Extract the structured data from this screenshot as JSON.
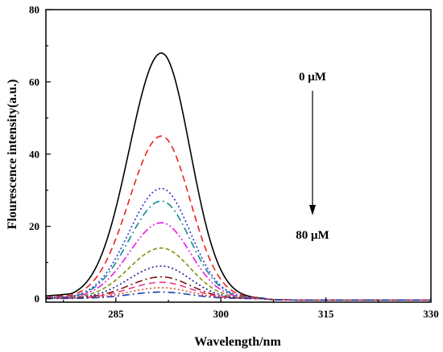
{
  "chart_data": {
    "type": "line",
    "title": "",
    "xlabel": "Wavelength/nm",
    "ylabel": "Flourescence intensity(a.u.)",
    "xlim": [
      275,
      330
    ],
    "ylim": [
      -1,
      80
    ],
    "xticks": [
      285,
      300,
      315,
      330
    ],
    "yticks": [
      0,
      20,
      40,
      60,
      80
    ],
    "annotations": {
      "top": "0 μM",
      "bottom": "80 μM",
      "arrow_direction": "down"
    },
    "peak_x": 291.5,
    "series": [
      {
        "concentration_order": 1,
        "peak": 68,
        "color": "#000000",
        "dash": "solid"
      },
      {
        "concentration_order": 2,
        "peak": 45,
        "color": "#e8241e",
        "dash": "dashed"
      },
      {
        "concentration_order": 3,
        "peak": 30.5,
        "color": "#2b2bd6",
        "dash": "dotted"
      },
      {
        "concentration_order": 4,
        "peak": 27,
        "color": "#138a8a",
        "dash": "dashdot"
      },
      {
        "concentration_order": 5,
        "peak": 21,
        "color": "#e61ee6",
        "dash": "dashdotdot"
      },
      {
        "concentration_order": 6,
        "peak": 14,
        "color": "#8a8a10",
        "dash": "shortdash"
      },
      {
        "concentration_order": 7,
        "peak": 9,
        "color": "#1a1a9a",
        "dash": "dotted"
      },
      {
        "concentration_order": 8,
        "peak": 6,
        "color": "#7a1414",
        "dash": "dashdot"
      },
      {
        "concentration_order": 9,
        "peak": 4.5,
        "color": "#ee3a82",
        "dash": "dashed"
      },
      {
        "concentration_order": 10,
        "peak": 3,
        "color": "#e04b2a",
        "dash": "dotted"
      },
      {
        "concentration_order": 11,
        "peak": 1.8,
        "color": "#1a3ab0",
        "dash": "dashdot"
      }
    ]
  }
}
